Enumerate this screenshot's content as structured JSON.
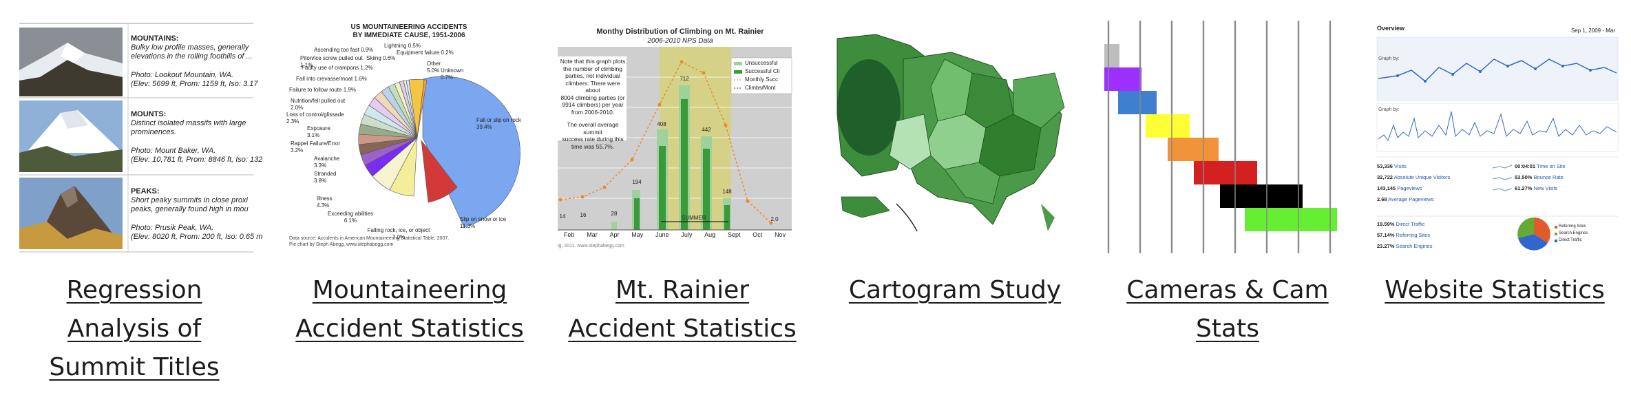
{
  "cards": [
    {
      "caption": "Regression Analysis of Summit Titles",
      "caption_lines": [
        "Regression ",
        "Analysis of ",
        "Summit Titles"
      ],
      "entries": [
        {
          "type": "MOUNTAINS:",
          "desc": "Bulky low profile masses, generally",
          "desc2": "elevations in the rolling foothills of ...",
          "photo": "Photo: Lookout Mountain, WA.",
          "elev": "(Elev: 5699 ft, Prom: 1159 ft, Iso: 3.17"
        },
        {
          "type": "MOUNTS:",
          "desc": "Distinct isolated massifs with large",
          "desc2": "prominences.",
          "photo": "Photo: Mount Baker, WA.",
          "elev": "(Elev: 10,781 ft, Prom: 8846 ft, Iso: 132"
        },
        {
          "type": "PEAKS:",
          "desc": "Short peaky summits in close proxi",
          "desc2": "peaks, generally found high in mou",
          "photo": "Photo: Prusik Peak, WA.",
          "elev": "(Elev: 8020 ft, Prom: 200 ft, Iso: 0.65 m"
        }
      ]
    },
    {
      "caption": "Mountaineering Accident Statistics",
      "caption_lines": [
        "Mountaineering ",
        "Accident Statistics"
      ],
      "title1": "US MOUNTAINEERING ACCIDENTS",
      "title2": "BY IMMEDIATE CAUSE, 1951-2006",
      "source1": "Data source: Accidents in American Mountaineering Statistical Table, 2007.",
      "source2": "Pie chart by Steph Abegg, www.stephabegg.com",
      "labels": [
        {
          "t": "Fall or slip on rock",
          "v": "39.4%"
        },
        {
          "t": "Slip on snow or ice",
          "v": "11.3%"
        },
        {
          "t": "Falling rock, ice, or object",
          "v": "7.0%"
        },
        {
          "t": "Exceeding abilities",
          "v": "6.1%"
        },
        {
          "t": "Illness",
          "v": "4.3%"
        },
        {
          "t": "Stranded",
          "v": "3.8%"
        },
        {
          "t": "Avalanche",
          "v": "3.3%"
        },
        {
          "t": "Rappel Failure/Error",
          "v": "3.2%"
        },
        {
          "t": "Exposure",
          "v": "3.1%"
        },
        {
          "t": "Loss of control/glissade",
          "v": "2.3%"
        },
        {
          "t": "Nutrition/fell pulled out",
          "v": "2.0%"
        },
        {
          "t": "Failure to follow route",
          "v": "1.9%"
        },
        {
          "t": "Fall into crevasse/moat",
          "v": "1.6%"
        },
        {
          "t": "Faulty use of crampons",
          "v": "1.2%"
        },
        {
          "t": "Piton/ice screw pulled out",
          "v": "1.1%"
        },
        {
          "t": "Ascending too fast",
          "v": "0.9%"
        },
        {
          "t": "Lightning",
          "v": "0.5%"
        },
        {
          "t": "Skiing",
          "v": "0.6%"
        },
        {
          "t": "Equipment failure",
          "v": "0.2%"
        },
        {
          "t": "Other",
          "v": "5.0%"
        },
        {
          "t": "Unknown",
          "v": "0.7%"
        }
      ]
    },
    {
      "caption": "Mt. Rainier Accident Statistics",
      "caption_lines": [
        "Mt. Rainier ",
        "Accident Statistics"
      ],
      "title": "Monthy Distribution of Climbing on Mt. Rainier",
      "subtitle": "2006-2010 NPS Data",
      "note": [
        "Note that this graph plots",
        "the number of climbing",
        "parties, not individual",
        "climbers. There were about",
        "8004 climbing parties (or",
        "9914 climbers) per year",
        "from 2006-2010.",
        "",
        "The overall average summit",
        "success rate during this",
        "time was 55.7%."
      ],
      "legend": [
        "Unsuccessful",
        "Successful Cli",
        "Monthly Succ",
        "Climbs/Mont"
      ],
      "months": [
        "Feb",
        "Mar",
        "Apr",
        "May",
        "June",
        "July",
        "Aug",
        "Sept",
        "Oct",
        "Nov"
      ],
      "bar_labels": [
        "14",
        "16",
        "28",
        "194",
        "408",
        "712",
        "442",
        "148",
        "",
        "2.0"
      ],
      "summer": "SUMMER",
      "footer": "ig, 2011. www.stephabegg.com"
    },
    {
      "caption": "Cartogram Study",
      "caption_lines": [
        "Cartogram Study"
      ]
    },
    {
      "caption": "Cameras & Cam Stats",
      "caption_lines": [
        "Cameras & Cam ",
        "Stats"
      ],
      "colors": [
        "#bdbdbd",
        "#9b30ff",
        "#3f7fd0",
        "#ffff33",
        "#f0933a",
        "#d42020",
        "#000000",
        "#66ee33"
      ]
    },
    {
      "caption": "Website Statistics",
      "caption_lines": [
        "Website Statistics"
      ],
      "overview": "Overview",
      "daterange": "Sep 1, 2009 - Mar",
      "graph_by": "Graph by:",
      "stats_left": [
        {
          "v": "53,336",
          "l": "Visits"
        },
        {
          "v": "32,722",
          "l": "Absolute Unique Visitors"
        },
        {
          "v": "143,145",
          "l": "Pageviews"
        },
        {
          "v": "2.68",
          "l": "Average Pageviews"
        }
      ],
      "stats_right": [
        {
          "v": "00:04:01",
          "l": "Time on Site"
        },
        {
          "v": "53.50%",
          "l": "Bounce Rate"
        },
        {
          "v": "61.27%",
          "l": "New Visits"
        }
      ],
      "traffic": [
        {
          "v": "19.59%",
          "l": "Direct Traffic"
        },
        {
          "v": "57.14%",
          "l": "Referring Sites"
        },
        {
          "v": "23.27%",
          "l": "Search Engines"
        }
      ],
      "pie_legend": [
        "Referring Sites",
        "Search Engines",
        "Direct Traffic"
      ]
    }
  ]
}
